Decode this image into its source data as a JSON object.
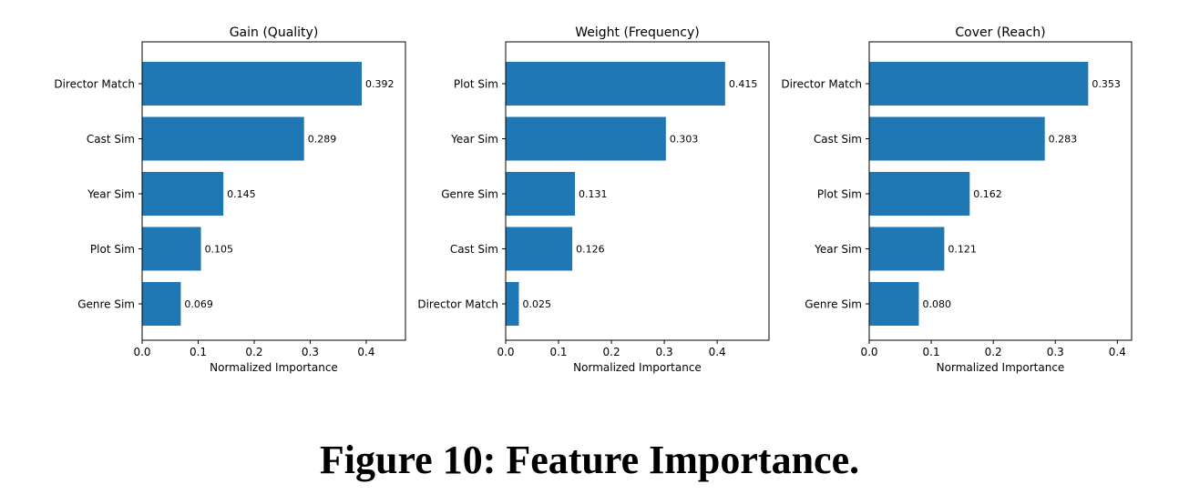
{
  "chart_data": [
    {
      "type": "bar",
      "orientation": "horizontal",
      "title": "Gain (Quality)",
      "xlabel": "Normalized Importance",
      "categories": [
        "Director Match",
        "Cast Sim",
        "Year Sim",
        "Plot Sim",
        "Genre Sim"
      ],
      "values": [
        0.392,
        0.289,
        0.145,
        0.105,
        0.069
      ],
      "value_labels": [
        "0.392",
        "0.289",
        "0.145",
        "0.105",
        "0.069"
      ],
      "xlim": [
        0,
        0.47
      ],
      "xticks": [
        0.0,
        0.1,
        0.2,
        0.3,
        0.4
      ],
      "xtick_labels": [
        "0.0",
        "0.1",
        "0.2",
        "0.3",
        "0.4"
      ]
    },
    {
      "type": "bar",
      "orientation": "horizontal",
      "title": "Weight (Frequency)",
      "xlabel": "Normalized Importance",
      "categories": [
        "Plot Sim",
        "Year Sim",
        "Genre Sim",
        "Cast Sim",
        "Director Match"
      ],
      "values": [
        0.415,
        0.303,
        0.131,
        0.126,
        0.025
      ],
      "value_labels": [
        "0.415",
        "0.303",
        "0.131",
        "0.126",
        "0.025"
      ],
      "xlim": [
        0,
        0.498
      ],
      "xticks": [
        0.0,
        0.1,
        0.2,
        0.3,
        0.4
      ],
      "xtick_labels": [
        "0.0",
        "0.1",
        "0.2",
        "0.3",
        "0.4"
      ]
    },
    {
      "type": "bar",
      "orientation": "horizontal",
      "title": "Cover (Reach)",
      "xlabel": "Normalized Importance",
      "categories": [
        "Director Match",
        "Cast Sim",
        "Plot Sim",
        "Year Sim",
        "Genre Sim"
      ],
      "values": [
        0.353,
        0.283,
        0.162,
        0.121,
        0.08
      ],
      "value_labels": [
        "0.353",
        "0.283",
        "0.162",
        "0.121",
        "0.080"
      ],
      "xlim": [
        0,
        0.423
      ],
      "xticks": [
        0.0,
        0.1,
        0.2,
        0.3,
        0.4
      ],
      "xtick_labels": [
        "0.0",
        "0.1",
        "0.2",
        "0.3",
        "0.4"
      ]
    }
  ],
  "bar_color": "#1f77b4",
  "caption": "Figure 10: Feature Importance."
}
